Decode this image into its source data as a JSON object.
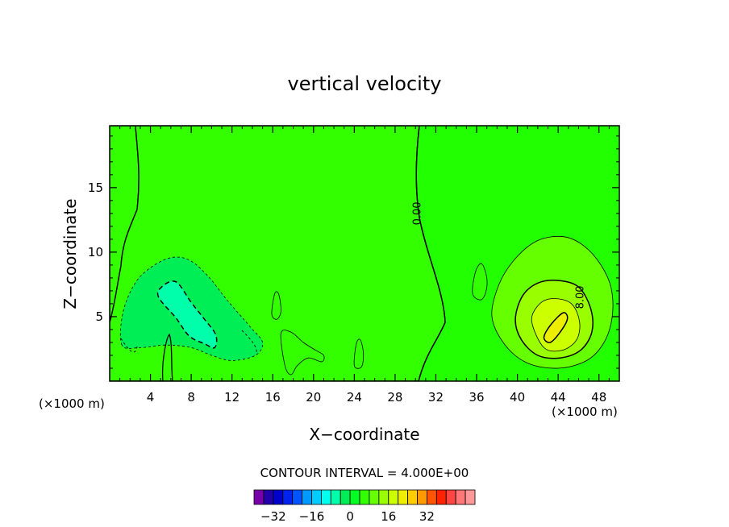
{
  "chart_data": {
    "type": "contour",
    "title": "vertical velocity",
    "xlabel": "X−coordinate",
    "ylabel": "Z−coordinate",
    "x_unit_left": "(×1000 m)",
    "x_unit_right": "(×1000 m)",
    "xlim": [
      0,
      50
    ],
    "ylim": [
      0,
      19.8
    ],
    "xticks": [
      4,
      8,
      12,
      16,
      20,
      24,
      28,
      32,
      36,
      40,
      44,
      48
    ],
    "xtick_labels": [
      "4",
      "8",
      "12",
      "16",
      "20",
      "24",
      "28",
      "32",
      "36",
      "40",
      "44",
      "48"
    ],
    "yticks": [
      5,
      10,
      15
    ],
    "ytick_labels": [
      "5",
      "10",
      "15"
    ],
    "contour_interval_text": "CONTOUR INTERVAL = 4.000E+00",
    "contour_labels": [
      {
        "text": "0.00",
        "x": 30.5,
        "z": 13
      },
      {
        "text": "8.00",
        "x": 46.5,
        "z": 6.5
      }
    ],
    "regions": [
      {
        "name": "updraft-outer",
        "level": 4,
        "color": "#66ff00",
        "points": [
          [
            37.5,
            5
          ],
          [
            38.2,
            7.5
          ],
          [
            39.8,
            9.5
          ],
          [
            42,
            10.9
          ],
          [
            44.5,
            11.2
          ],
          [
            46.5,
            10.5
          ],
          [
            48.2,
            9
          ],
          [
            49.2,
            7.2
          ],
          [
            49.3,
            5
          ],
          [
            48.5,
            3
          ],
          [
            46.8,
            1.6
          ],
          [
            44,
            1
          ],
          [
            41,
            1.4
          ],
          [
            38.8,
            2.8
          ]
        ]
      },
      {
        "name": "updraft-mid",
        "level": 8,
        "color": "#99ff00",
        "points": [
          [
            39.8,
            4.8
          ],
          [
            40.5,
            6.6
          ],
          [
            42,
            7.6
          ],
          [
            44,
            7.8
          ],
          [
            46,
            7.3
          ],
          [
            47.2,
            5.6
          ],
          [
            47.3,
            3.8
          ],
          [
            46.2,
            2.4
          ],
          [
            44.2,
            1.8
          ],
          [
            42,
            2
          ],
          [
            40.4,
            3.2
          ]
        ]
      },
      {
        "name": "updraft-inner",
        "level": 12,
        "color": "#ccff00",
        "points": [
          [
            41.4,
            4.7
          ],
          [
            42.2,
            6
          ],
          [
            43.6,
            6.4
          ],
          [
            45.3,
            6
          ],
          [
            46.1,
            4.6
          ],
          [
            45.8,
            3.2
          ],
          [
            44.4,
            2.4
          ],
          [
            42.6,
            2.6
          ]
        ]
      },
      {
        "name": "updraft-core",
        "level": 16,
        "color": "#eeee00",
        "points": [
          [
            42.6,
            3.4
          ],
          [
            43.3,
            4.4
          ],
          [
            44.5,
            5.3
          ],
          [
            44.9,
            4.8
          ],
          [
            44.1,
            3.7
          ],
          [
            43.2,
            3
          ]
        ]
      },
      {
        "name": "downdraft-outer",
        "level": -4,
        "color": "#00ee55",
        "points": [
          [
            1.2,
            2.8
          ],
          [
            1.3,
            5.3
          ],
          [
            2.5,
            7.6
          ],
          [
            4.2,
            8.9
          ],
          [
            6.2,
            9.6
          ],
          [
            8,
            9.3
          ],
          [
            9.8,
            8
          ],
          [
            11.5,
            6.3
          ],
          [
            13.8,
            4.2
          ],
          [
            15,
            3
          ],
          [
            14.3,
            2
          ],
          [
            12,
            1.6
          ],
          [
            10,
            2
          ],
          [
            8,
            2.6
          ],
          [
            5.5,
            2.8
          ],
          [
            3,
            2.6
          ]
        ]
      },
      {
        "name": "downdraft-inner",
        "level": -8,
        "color": "#00ffaa",
        "points": [
          [
            4.8,
            6.5
          ],
          [
            5.1,
            7.3
          ],
          [
            6.5,
            7.7
          ],
          [
            8,
            6.1
          ],
          [
            9.2,
            4.9
          ],
          [
            10.4,
            3.6
          ],
          [
            10.3,
            2.6
          ],
          [
            9.3,
            2.9
          ],
          [
            7.8,
            3.5
          ],
          [
            6.5,
            4.9
          ]
        ]
      },
      {
        "name": "updraft-blob-36",
        "level": 4,
        "color": "#33ff00",
        "points": [
          [
            35.6,
            6.8
          ],
          [
            35.9,
            8.5
          ],
          [
            36.5,
            9.1
          ],
          [
            37,
            8
          ],
          [
            36.9,
            6.9
          ],
          [
            36.4,
            6.3
          ]
        ]
      },
      {
        "name": "updraft-blob-16",
        "level": 4,
        "color": "#33ff00",
        "points": [
          [
            15.9,
            5.2
          ],
          [
            16.2,
            6.8
          ],
          [
            16.6,
            6.7
          ],
          [
            16.8,
            5.4
          ],
          [
            16.4,
            4.8
          ]
        ]
      },
      {
        "name": "updraft-blob-24",
        "level": 4,
        "color": "#33ff00",
        "points": [
          [
            24,
            1.2
          ],
          [
            24.2,
            2.9
          ],
          [
            24.6,
            3.2
          ],
          [
            24.9,
            2.1
          ],
          [
            24.7,
            1.1
          ]
        ]
      },
      {
        "name": "updraft-strip-18",
        "level": 4,
        "color": "#33ff00",
        "points": [
          [
            16.8,
            3.7
          ],
          [
            17.8,
            3.8
          ],
          [
            19,
            3
          ],
          [
            20.2,
            2.4
          ],
          [
            21,
            2
          ],
          [
            20.8,
            1.5
          ],
          [
            19.5,
            1.8
          ],
          [
            18.4,
            1.2
          ],
          [
            17.8,
            0.5
          ],
          [
            17.2,
            1.2
          ]
        ]
      }
    ],
    "colorbar": {
      "colors": [
        "#7700aa",
        "#2200aa",
        "#0000cc",
        "#0022ee",
        "#0055ff",
        "#0099ff",
        "#00ccff",
        "#00ffee",
        "#00ffaa",
        "#00ee55",
        "#00ff22",
        "#33ff00",
        "#66ff00",
        "#99ff00",
        "#ccff00",
        "#eeee00",
        "#ffcc00",
        "#ff9900",
        "#ff5500",
        "#ff2200",
        "#ff4444",
        "#ff7777",
        "#ff9999"
      ],
      "levels": [
        -40,
        -36,
        -32,
        -28,
        -24,
        -20,
        -16,
        -12,
        -8,
        -4,
        0,
        4,
        8,
        12,
        16,
        20,
        24,
        28,
        32,
        36,
        40,
        44,
        48,
        52
      ],
      "tick_values": [
        -32,
        -16,
        0,
        16,
        32
      ],
      "tick_labels": [
        "−32",
        "−16",
        "0",
        "16",
        "32"
      ]
    }
  }
}
